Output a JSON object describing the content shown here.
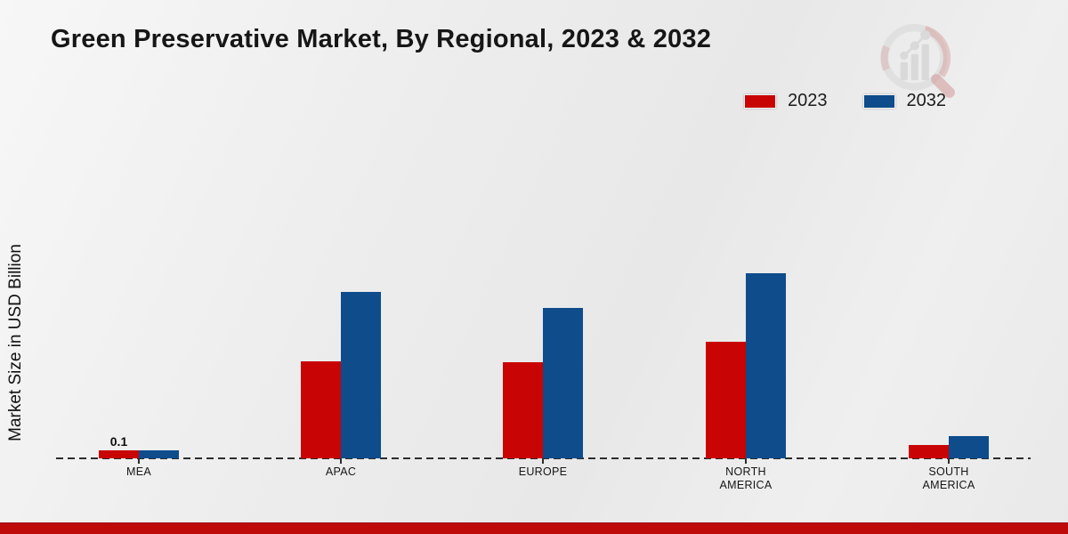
{
  "title": "Green Preservative Market, By Regional, 2023 & 2032",
  "y_axis_label": "Market Size in USD Billion",
  "legend": {
    "position": "top-right",
    "items": [
      {
        "label": "2023",
        "color": "#c90404"
      },
      {
        "label": "2032",
        "color": "#0e4c8c"
      }
    ]
  },
  "colors": {
    "series_2023": "#c90404",
    "series_2032": "#0e4c8c",
    "footer_stripe": "#bf0a0a",
    "baseline": "#2d2d2d",
    "background": "#ececec"
  },
  "watermark_icon": "magnifier-bar-chart-logo",
  "chart_data": {
    "type": "bar",
    "title": "Green Preservative Market, By Regional, 2023 & 2032",
    "xlabel": "",
    "ylabel": "Market Size in USD Billion",
    "units": "USD Billion",
    "categories": [
      "MEA",
      "APAC",
      "EUROPE",
      "NORTH AMERICA",
      "SOUTH AMERICA"
    ],
    "series": [
      {
        "name": "2023",
        "color": "#c90404",
        "values": [
          0.1,
          1.15,
          1.14,
          1.38,
          0.16
        ]
      },
      {
        "name": "2032",
        "color": "#0e4c8c",
        "values": [
          0.09,
          1.97,
          1.78,
          2.19,
          0.26
        ]
      }
    ],
    "point_labels": [
      {
        "series": "2023",
        "category": "MEA",
        "text": "0.1"
      }
    ],
    "ylim": [
      0,
      2.4
    ],
    "grid": false,
    "baseline_style": "dashed",
    "legend_position": "top-right"
  }
}
